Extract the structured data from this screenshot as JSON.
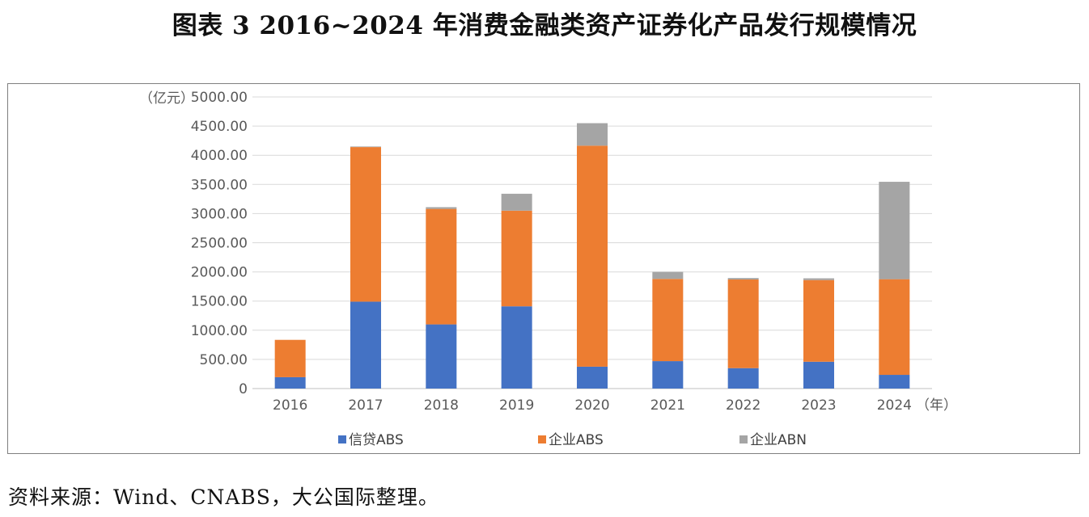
{
  "title": "图表 3  2016~2024 年消费金融类资产证券化产品发行规模情况",
  "source": "资料来源：Wind、CNABS，大公国际整理。",
  "chart_data": {
    "type": "bar",
    "stacked": true,
    "y_unit_label": "（亿元）",
    "x_unit_label": "（年）",
    "categories": [
      "2016",
      "2017",
      "2018",
      "2019",
      "2020",
      "2021",
      "2022",
      "2023",
      "2024"
    ],
    "series": [
      {
        "name": "信贷ABS",
        "color": "#4472C4",
        "values": [
          195,
          1490,
          1100,
          1410,
          375,
          470,
          350,
          460,
          235
        ]
      },
      {
        "name": "企业ABS",
        "color": "#ED7D31",
        "values": [
          640,
          2650,
          1980,
          1640,
          3790,
          1410,
          1520,
          1400,
          1640
        ]
      },
      {
        "name": "企业ABN",
        "color": "#A5A5A5",
        "values": [
          0,
          10,
          30,
          290,
          385,
          120,
          25,
          30,
          1670
        ]
      }
    ],
    "ylim": [
      0,
      5000
    ],
    "yticks": [
      "0",
      "500.00",
      "1000.00",
      "1500.00",
      "2000.00",
      "2500.00",
      "3000.00",
      "3500.00",
      "4000.00",
      "4500.00",
      "5000.00"
    ],
    "ytick_values": [
      0,
      500,
      1000,
      1500,
      2000,
      2500,
      3000,
      3500,
      4000,
      4500,
      5000
    ],
    "grid": true,
    "legend_position": "bottom"
  }
}
